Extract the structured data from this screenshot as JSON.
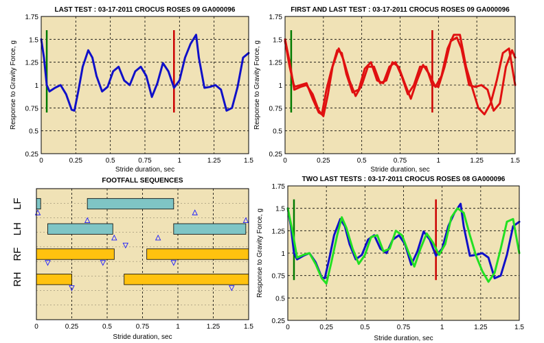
{
  "chart_data": [
    {
      "type": "line",
      "title": "LAST TEST : 03-17-2011 CROCUS ROSES 09 GA000096",
      "xlabel": "Stride duration, sec",
      "ylabel": "Response to Gravity Force, g",
      "xlim": [
        0,
        1.5
      ],
      "ylim": [
        0.25,
        1.75
      ],
      "xticks": [
        "0",
        "0.25",
        "0.5",
        "0.75",
        "1",
        "1.25",
        "1.5"
      ],
      "yticks": [
        "0.25",
        "0.5",
        "0.75",
        "1",
        "1.25",
        "1.5",
        "1.75"
      ],
      "grid": true,
      "background": "#f0e2b6",
      "markers": [
        {
          "x": 0.04,
          "y0": 0.7,
          "y1": 1.6,
          "color": "#007a00"
        },
        {
          "x": 0.96,
          "y0": 0.7,
          "y1": 1.6,
          "color": "#cc0000"
        }
      ],
      "series": [
        {
          "color": "#1010c8",
          "x": [
            0,
            0.02,
            0.04,
            0.06,
            0.1,
            0.14,
            0.18,
            0.22,
            0.24,
            0.27,
            0.3,
            0.34,
            0.37,
            0.4,
            0.44,
            0.48,
            0.52,
            0.56,
            0.6,
            0.64,
            0.68,
            0.72,
            0.76,
            0.8,
            0.84,
            0.88,
            0.92,
            0.96,
            1.0,
            1.04,
            1.08,
            1.12,
            1.14,
            1.18,
            1.22,
            1.26,
            1.3,
            1.34,
            1.38,
            1.42,
            1.46,
            1.5
          ],
          "y": [
            1.5,
            1.3,
            1.0,
            0.93,
            0.97,
            1.0,
            0.9,
            0.73,
            0.72,
            0.95,
            1.2,
            1.38,
            1.3,
            1.1,
            0.93,
            0.98,
            1.15,
            1.2,
            1.05,
            1.0,
            1.15,
            1.2,
            1.1,
            0.87,
            1.02,
            1.24,
            1.15,
            0.97,
            1.05,
            1.3,
            1.45,
            1.55,
            1.3,
            0.97,
            0.98,
            1.0,
            0.95,
            0.72,
            0.75,
            0.98,
            1.3,
            1.35
          ]
        }
      ]
    },
    {
      "type": "line",
      "title": "FIRST AND LAST TEST : 03-17-2011 CROCUS ROSES 09 GA000096",
      "xlabel": "Stride duration, sec",
      "ylabel": "Response to Gravity Force, g",
      "xlim": [
        0,
        1.5
      ],
      "ylim": [
        0.25,
        1.75
      ],
      "xticks": [
        "0",
        "0.25",
        "0.5",
        "0.75",
        "1",
        "1.25",
        "1.5"
      ],
      "yticks": [
        "0.25",
        "0.5",
        "0.75",
        "1",
        "1.25",
        "1.5",
        "1.75"
      ],
      "grid": true,
      "background": "#f0e2b6",
      "markers": [
        {
          "x": 0.04,
          "y0": 0.7,
          "y1": 1.6,
          "color": "#007a00"
        },
        {
          "x": 0.96,
          "y0": 0.7,
          "y1": 1.6,
          "color": "#cc0000"
        }
      ],
      "series": [
        {
          "color": "#e01010",
          "x": [
            0,
            0.03,
            0.06,
            0.1,
            0.14,
            0.18,
            0.22,
            0.24,
            0.27,
            0.3,
            0.34,
            0.37,
            0.4,
            0.44,
            0.48,
            0.52,
            0.56,
            0.6,
            0.64,
            0.68,
            0.72,
            0.76,
            0.8,
            0.84,
            0.88,
            0.92,
            0.96,
            1.0,
            1.04,
            1.08,
            1.12,
            1.15,
            1.2,
            1.24,
            1.28,
            1.32,
            1.36,
            1.4,
            1.44,
            1.48,
            1.5
          ],
          "y": [
            1.48,
            1.2,
            0.98,
            1.0,
            1.02,
            0.85,
            0.7,
            0.68,
            0.95,
            1.15,
            1.38,
            1.35,
            1.12,
            0.92,
            0.95,
            1.18,
            1.25,
            1.05,
            1.02,
            1.2,
            1.25,
            1.1,
            0.9,
            1.0,
            1.2,
            1.2,
            1.0,
            0.98,
            1.2,
            1.48,
            1.52,
            1.4,
            1.0,
            0.98,
            1.0,
            0.95,
            0.72,
            0.8,
            1.2,
            1.38,
            1.3
          ]
        },
        {
          "color": "#e01010",
          "x": [
            0,
            0.03,
            0.06,
            0.1,
            0.14,
            0.18,
            0.22,
            0.25,
            0.28,
            0.31,
            0.35,
            0.38,
            0.42,
            0.46,
            0.5,
            0.54,
            0.58,
            0.62,
            0.66,
            0.7,
            0.74,
            0.78,
            0.82,
            0.86,
            0.9,
            0.94,
            0.98,
            1.02,
            1.06,
            1.1,
            1.14,
            1.18,
            1.22,
            1.26,
            1.3,
            1.34,
            1.38,
            1.42,
            1.46,
            1.5
          ],
          "y": [
            1.5,
            1.25,
            0.95,
            0.98,
            1.0,
            0.9,
            0.72,
            0.66,
            0.9,
            1.2,
            1.4,
            1.28,
            1.05,
            0.88,
            1.0,
            1.2,
            1.2,
            1.02,
            1.05,
            1.25,
            1.2,
            1.02,
            0.85,
            1.05,
            1.22,
            1.12,
            0.98,
            1.1,
            1.4,
            1.55,
            1.55,
            1.2,
            0.97,
            0.75,
            0.68,
            0.8,
            1.05,
            1.35,
            1.4,
            1.0
          ]
        }
      ]
    },
    {
      "type": "bar",
      "title": "FOOTFALL SEQUENCES",
      "xlabel": "Stride duration, sec",
      "xlim": [
        0,
        1.5
      ],
      "xticks": [
        "0",
        "0.25",
        "0.5",
        "0.75",
        "1",
        "1.25",
        "1.5"
      ],
      "rows": [
        "LF",
        "LH",
        "RF",
        "RH"
      ],
      "grid": true,
      "background": "#f0e2b6",
      "row_colors": {
        "LF": "#7fc5c5",
        "LH": "#7fc5c5",
        "RF": "#ffc20f",
        "RH": "#ffc20f"
      },
      "segments": [
        {
          "row": "LF",
          "start": 0.0,
          "end": 0.03
        },
        {
          "row": "LF",
          "start": 0.36,
          "end": 0.97
        },
        {
          "row": "LH",
          "start": 0.08,
          "end": 0.54
        },
        {
          "row": "LH",
          "start": 0.97,
          "end": 1.48
        },
        {
          "row": "RF",
          "start": 0.0,
          "end": 0.55
        },
        {
          "row": "RF",
          "start": 0.78,
          "end": 1.5
        },
        {
          "row": "RH",
          "start": 0.0,
          "end": 0.25
        },
        {
          "row": "RH",
          "start": 0.62,
          "end": 1.5
        }
      ],
      "events": [
        {
          "type": "up",
          "x": 0.01,
          "row": "LF",
          "pos": "below"
        },
        {
          "type": "up",
          "x": 1.12,
          "row": "LF",
          "pos": "below"
        },
        {
          "type": "up",
          "x": 0.36,
          "row": "LH",
          "pos": "above"
        },
        {
          "type": "up",
          "x": 0.55,
          "row": "LH",
          "pos": "below"
        },
        {
          "type": "up",
          "x": 0.86,
          "row": "LH",
          "pos": "below"
        },
        {
          "type": "up",
          "x": 1.48,
          "row": "LH",
          "pos": "above"
        },
        {
          "type": "down",
          "x": 0.63,
          "row": "RF",
          "pos": "above"
        },
        {
          "type": "down",
          "x": 0.08,
          "row": "RF",
          "pos": "below"
        },
        {
          "type": "down",
          "x": 0.47,
          "row": "RF",
          "pos": "below"
        },
        {
          "type": "down",
          "x": 0.97,
          "row": "RF",
          "pos": "below"
        },
        {
          "type": "down",
          "x": 0.25,
          "row": "RH",
          "pos": "below"
        },
        {
          "type": "down",
          "x": 1.38,
          "row": "RH",
          "pos": "below"
        }
      ]
    },
    {
      "type": "line",
      "title": "TWO LAST TESTS : 03-17-2011 CROCUS ROSES 08 GA000096",
      "xlabel": "Stride duration, sec",
      "ylabel": "Response to Gravity Force, g",
      "xlim": [
        0,
        1.5
      ],
      "ylim": [
        0.25,
        1.75
      ],
      "xticks": [
        "0",
        "0.25",
        "0.5",
        "0.75",
        "1",
        "1.25",
        "1.5"
      ],
      "yticks": [
        "0.25",
        "0.5",
        "0.75",
        "1",
        "1.25",
        "1.5",
        "1.75"
      ],
      "grid": true,
      "background": "#f0e2b6",
      "markers": [
        {
          "x": 0.04,
          "y0": 0.7,
          "y1": 1.6,
          "color": "#007a00"
        },
        {
          "x": 0.96,
          "y0": 0.7,
          "y1": 1.6,
          "color": "#cc0000"
        }
      ],
      "series": [
        {
          "color": "#1010c8",
          "x": [
            0,
            0.02,
            0.04,
            0.06,
            0.1,
            0.14,
            0.18,
            0.22,
            0.24,
            0.27,
            0.3,
            0.34,
            0.37,
            0.4,
            0.44,
            0.48,
            0.52,
            0.56,
            0.6,
            0.64,
            0.68,
            0.72,
            0.76,
            0.8,
            0.84,
            0.88,
            0.92,
            0.96,
            1.0,
            1.04,
            1.08,
            1.12,
            1.14,
            1.18,
            1.22,
            1.26,
            1.3,
            1.34,
            1.38,
            1.42,
            1.46,
            1.5
          ],
          "y": [
            1.5,
            1.3,
            1.0,
            0.93,
            0.97,
            1.0,
            0.9,
            0.73,
            0.72,
            0.95,
            1.2,
            1.38,
            1.3,
            1.1,
            0.93,
            0.98,
            1.15,
            1.2,
            1.05,
            1.0,
            1.15,
            1.2,
            1.1,
            0.87,
            1.02,
            1.24,
            1.15,
            0.97,
            1.05,
            1.3,
            1.45,
            1.55,
            1.3,
            0.97,
            0.98,
            1.0,
            0.95,
            0.72,
            0.75,
            0.98,
            1.3,
            1.35
          ]
        },
        {
          "color": "#22e022",
          "x": [
            0,
            0.03,
            0.06,
            0.1,
            0.14,
            0.18,
            0.22,
            0.25,
            0.28,
            0.32,
            0.35,
            0.38,
            0.42,
            0.46,
            0.5,
            0.54,
            0.58,
            0.62,
            0.66,
            0.7,
            0.74,
            0.78,
            0.82,
            0.86,
            0.9,
            0.94,
            0.98,
            1.02,
            1.06,
            1.1,
            1.14,
            1.18,
            1.22,
            1.26,
            1.3,
            1.34,
            1.38,
            1.42,
            1.46,
            1.5
          ],
          "y": [
            1.5,
            1.25,
            0.95,
            0.98,
            1.0,
            0.88,
            0.72,
            0.66,
            0.88,
            1.2,
            1.4,
            1.28,
            1.05,
            0.88,
            0.98,
            1.18,
            1.2,
            1.02,
            1.05,
            1.25,
            1.2,
            1.02,
            0.85,
            1.05,
            1.22,
            1.12,
            0.98,
            1.1,
            1.4,
            1.5,
            1.45,
            1.2,
            0.97,
            0.8,
            0.68,
            0.78,
            1.05,
            1.35,
            1.38,
            1.0
          ]
        }
      ]
    }
  ]
}
